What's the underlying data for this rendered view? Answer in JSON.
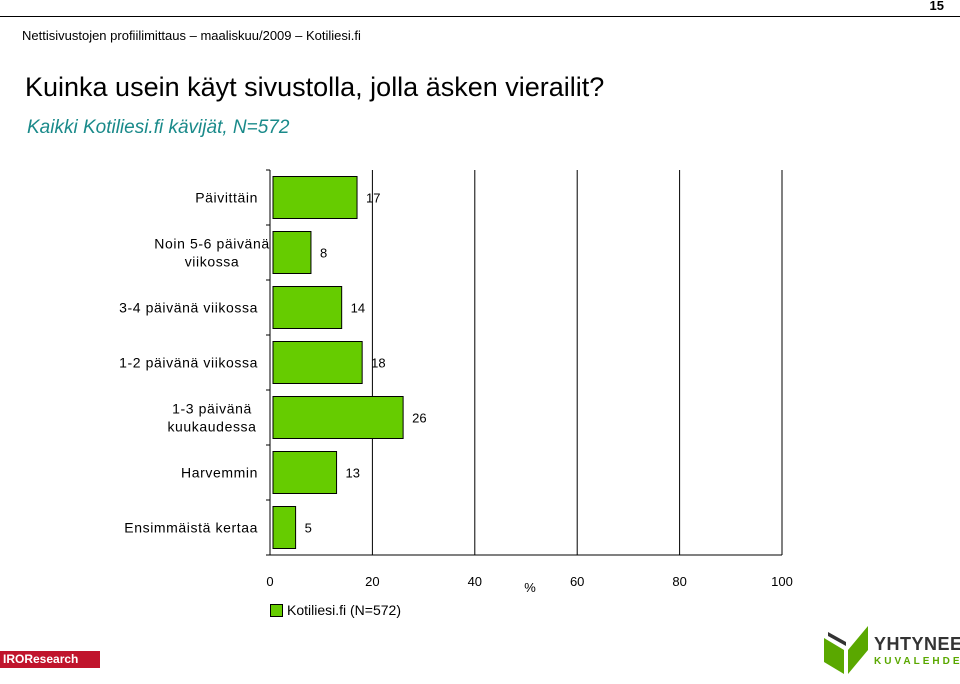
{
  "page_number": "15",
  "header": "Nettisivustojen profiilimittaus – maaliskuu/2009 – Kotiliesi.fi",
  "chart_data": {
    "type": "bar",
    "orientation": "horizontal",
    "title": "Kuinka usein käyt sivustolla, jolla äsken vierailit?",
    "subtitle": "Kaikki Kotiliesi.fi kävijät, N=572",
    "categories": [
      [
        "Päivittäin"
      ],
      [
        "Noin 5-6 päivänä",
        "viikossa"
      ],
      [
        "3-4 päivänä viikossa"
      ],
      [
        "1-2 päivänä viikossa"
      ],
      [
        "1-3 päivänä",
        "kuukaudessa"
      ],
      [
        "Harvemmin"
      ],
      [
        "Ensimmäistä kertaa"
      ]
    ],
    "series": [
      {
        "name": "Kotiliesi.fi (N=572)",
        "values": [
          17,
          8,
          14,
          18,
          26,
          13,
          5
        ],
        "color": "#66cc00"
      }
    ],
    "xlim": [
      0,
      100
    ],
    "xticks": [
      "0",
      "20",
      "40",
      "60",
      "80",
      "100"
    ],
    "xlabel": "%",
    "grid": true,
    "legend_position": "bottom-left"
  },
  "footer": {
    "logo_left": "IROResearch",
    "logo_right_name": "YHTYNEET",
    "logo_right_tag": "KUVALEHDET"
  }
}
